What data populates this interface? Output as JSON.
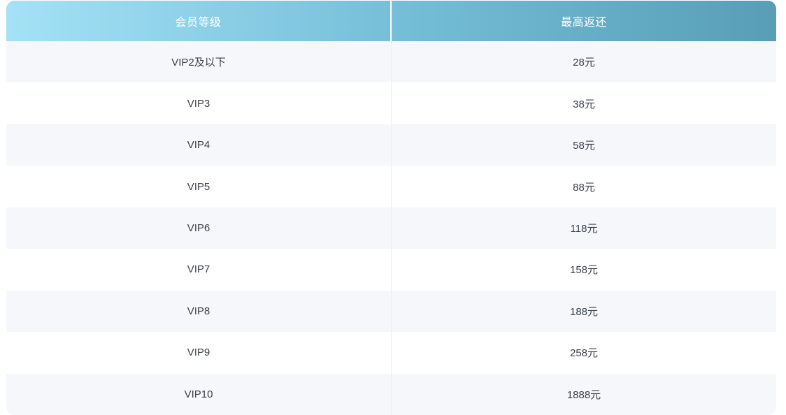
{
  "table": {
    "header": {
      "level_label": "会员等级",
      "reward_label": "最高返还"
    },
    "rows": [
      {
        "level": "VIP2及以下",
        "reward": "28元"
      },
      {
        "level": "VIP3",
        "reward": "38元"
      },
      {
        "level": "VIP4",
        "reward": "58元"
      },
      {
        "level": "VIP5",
        "reward": "88元"
      },
      {
        "level": "VIP6",
        "reward": "118元"
      },
      {
        "level": "VIP7",
        "reward": "158元"
      },
      {
        "level": "VIP8",
        "reward": "188元"
      },
      {
        "level": "VIP9",
        "reward": "258元"
      },
      {
        "level": "VIP10",
        "reward": "1888元"
      }
    ],
    "colors": {
      "header_gradient_left": "#A4E2F6",
      "header_gradient_right": "#579EB6",
      "header_text": "#FFFFFF",
      "row_alt_background": "#F5F7FB",
      "row_background": "#FFFFFF",
      "body_text": "#3B4049",
      "column_divider": "#ECEEF3"
    }
  },
  "chart_data": {
    "type": "table",
    "columns": [
      "会员等级",
      "最高返还"
    ],
    "rows": [
      [
        "VIP2及以下",
        "28元"
      ],
      [
        "VIP3",
        "38元"
      ],
      [
        "VIP4",
        "58元"
      ],
      [
        "VIP5",
        "88元"
      ],
      [
        "VIP6",
        "118元"
      ],
      [
        "VIP7",
        "158元"
      ],
      [
        "VIP8",
        "188元"
      ],
      [
        "VIP9",
        "258元"
      ],
      [
        "VIP10",
        "1888元"
      ]
    ]
  }
}
